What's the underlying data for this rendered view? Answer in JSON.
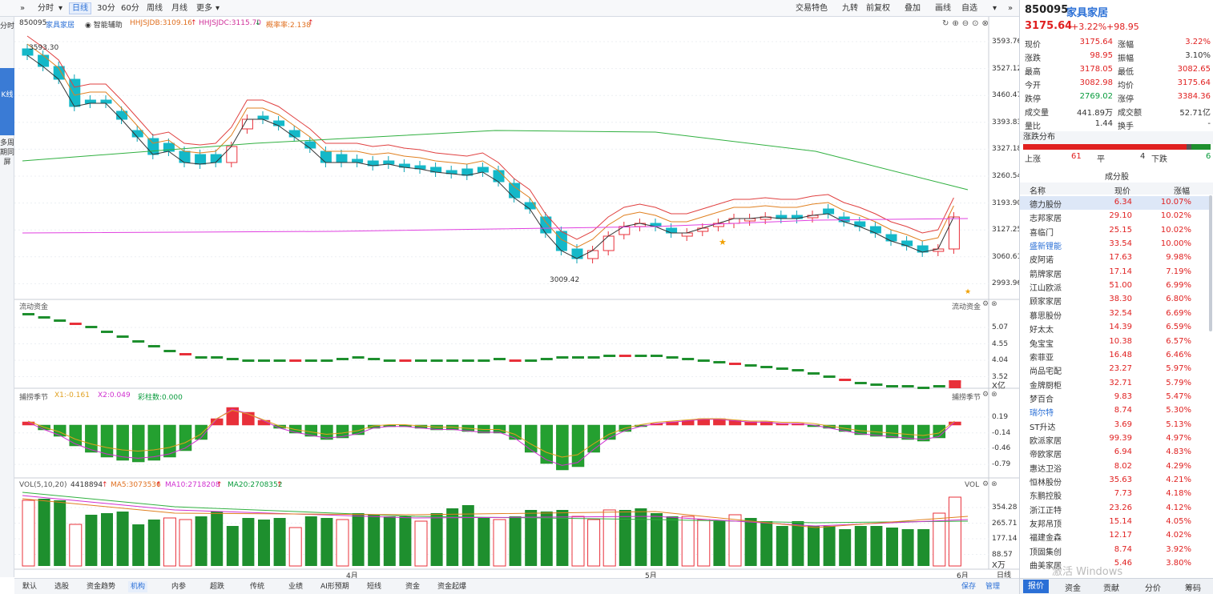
{
  "toolbar": {
    "items": [
      "分时",
      "日线",
      "30分",
      "60分",
      "周线",
      "月线",
      "更多"
    ],
    "right_items": [
      "交易特色",
      "九转",
      "前复权",
      "叠加",
      "画线",
      "自选"
    ]
  },
  "leftbar": [
    "分时",
    "K线",
    "多周期同屏"
  ],
  "kline_header": {
    "code": "850095",
    "name": "家具家居",
    "assist": "智能辅助",
    "hhjsjdb": "HHJSJDB:3109.16",
    "hhjsjdc": "HHJSJDC:3115.70",
    "zhl": "概率率:2.138"
  },
  "kline_axis": [
    "3593.76",
    "3527.12",
    "3460.47",
    "3393.83",
    "3327.18",
    "3260.54",
    "3193.90",
    "3127.25",
    "3060.61",
    "2993.96"
  ],
  "kline_marks": {
    "high": "3593.30",
    "low": "3009.42"
  },
  "flow_panel": {
    "title": "流动资金",
    "title_right": "流动资金",
    "axis": [
      "5.07",
      "4.55",
      "4.04",
      "3.52"
    ],
    "unit": "X亿"
  },
  "cycle_panel": {
    "title": "捕捞季节",
    "x1": "X1:-0.161",
    "x2": "X2:0.049",
    "count": "彩柱数:0.000",
    "title_right": "捕捞季节",
    "axis": [
      "0.19",
      "-0.14",
      "-0.46",
      "-0.79"
    ]
  },
  "vol_panel": {
    "title": "VOL(5,10,20)",
    "value": "4418894",
    "ma5": "MA5:3073536",
    "ma10": "MA10:2718208",
    "ma20": "MA20:2708352",
    "title_right": "VOL",
    "axis": [
      "354.28",
      "265.71",
      "177.14",
      "88.57"
    ],
    "unit": "X万"
  },
  "x_axis": [
    "4月",
    "5月",
    "6月"
  ],
  "bottom_tabs": [
    "默认",
    "选股",
    "资金趋势",
    "机构",
    "内参",
    "超跌",
    "传统",
    "业绩",
    "AI形预期",
    "短线",
    "资金",
    "资金起爆"
  ],
  "bottom_right": [
    "保存",
    "管理"
  ],
  "bottom_far": "日线",
  "quote": {
    "code": "850095",
    "name": "家具家居",
    "price": "3175.64",
    "change_pct": "+3.22%",
    "change": "+98.95",
    "rows": [
      {
        "l1": "现价",
        "v1": "3175.64",
        "l2": "涨幅",
        "v2": "3.22%",
        "c1": "red",
        "c2": "red"
      },
      {
        "l1": "涨跌",
        "v1": "98.95",
        "l2": "振幅",
        "v2": "3.10%",
        "c1": "red",
        "c2": "black"
      },
      {
        "l1": "最高",
        "v1": "3178.05",
        "l2": "最低",
        "v2": "3082.65",
        "c1": "red",
        "c2": "red"
      },
      {
        "l1": "今开",
        "v1": "3082.98",
        "l2": "均价",
        "v2": "3175.64",
        "c1": "red",
        "c2": "red"
      },
      {
        "l1": "跌停",
        "v1": "2769.02",
        "l2": "涨停",
        "v2": "3384.36",
        "c1": "green",
        "c2": "red"
      },
      {
        "l1": "成交量",
        "v1": "441.89万",
        "l2": "成交额",
        "v2": "52.71亿",
        "c1": "black",
        "c2": "black"
      },
      {
        "l1": "量比",
        "v1": "1.44",
        "l2": "换手",
        "v2": "-",
        "c1": "black",
        "c2": "black"
      }
    ],
    "dist_title": "涨跌分布",
    "dist": {
      "up_label": "上涨",
      "up": "61",
      "flat_label": "平",
      "flat": "4",
      "down_label": "下跌",
      "down": "6"
    },
    "components_title": "成分股",
    "col_headers": [
      "名称",
      "现价",
      "涨幅"
    ],
    "stocks": [
      {
        "name": "德力股份",
        "price": "6.34",
        "pct": "10.07%",
        "nc": "black"
      },
      {
        "name": "志邦家居",
        "price": "29.10",
        "pct": "10.02%",
        "nc": "black"
      },
      {
        "name": "喜临门",
        "price": "25.15",
        "pct": "10.02%",
        "nc": "black"
      },
      {
        "name": "盛新锂能",
        "price": "33.54",
        "pct": "10.00%",
        "nc": "blue"
      },
      {
        "name": "皮阿诺",
        "price": "17.63",
        "pct": "9.98%",
        "nc": "black"
      },
      {
        "name": "箭牌家居",
        "price": "17.14",
        "pct": "7.19%",
        "nc": "black"
      },
      {
        "name": "江山欧派",
        "price": "51.00",
        "pct": "6.99%",
        "nc": "black"
      },
      {
        "name": "顾家家居",
        "price": "38.30",
        "pct": "6.80%",
        "nc": "black"
      },
      {
        "name": "慕思股份",
        "price": "32.54",
        "pct": "6.69%",
        "nc": "black"
      },
      {
        "name": "好太太",
        "price": "14.39",
        "pct": "6.59%",
        "nc": "black"
      },
      {
        "name": "兔宝宝",
        "price": "10.38",
        "pct": "6.57%",
        "nc": "black"
      },
      {
        "name": "索菲亚",
        "price": "16.48",
        "pct": "6.46%",
        "nc": "black"
      },
      {
        "name": "尚品宅配",
        "price": "23.27",
        "pct": "5.97%",
        "nc": "black"
      },
      {
        "name": "金牌厨柜",
        "price": "32.71",
        "pct": "5.79%",
        "nc": "black"
      },
      {
        "name": "梦百合",
        "price": "9.83",
        "pct": "5.47%",
        "nc": "black"
      },
      {
        "name": "瑞尔特",
        "price": "8.74",
        "pct": "5.30%",
        "nc": "blue"
      },
      {
        "name": "ST升达",
        "price": "3.69",
        "pct": "5.13%",
        "nc": "black"
      },
      {
        "name": "欧派家居",
        "price": "99.39",
        "pct": "4.97%",
        "nc": "black"
      },
      {
        "name": "帝欧家居",
        "price": "6.94",
        "pct": "4.83%",
        "nc": "black"
      },
      {
        "name": "惠达卫浴",
        "price": "8.02",
        "pct": "4.29%",
        "nc": "black"
      },
      {
        "name": "恒林股份",
        "price": "35.63",
        "pct": "4.21%",
        "nc": "black"
      },
      {
        "name": "东鹏控股",
        "price": "7.73",
        "pct": "4.18%",
        "nc": "black"
      },
      {
        "name": "浙江正特",
        "price": "23.26",
        "pct": "4.12%",
        "nc": "black"
      },
      {
        "name": "友邦吊顶",
        "price": "15.14",
        "pct": "4.05%",
        "nc": "black"
      },
      {
        "name": "福建金森",
        "price": "12.17",
        "pct": "4.02%",
        "nc": "black"
      },
      {
        "name": "顶固集创",
        "price": "8.74",
        "pct": "3.92%",
        "nc": "black"
      },
      {
        "name": "曲美家居",
        "price": "5.46",
        "pct": "3.80%",
        "nc": "black"
      }
    ],
    "tabs": [
      "报价",
      "资金",
      "贡献",
      "分价",
      "筹码"
    ],
    "watermark": "激活 Windows"
  },
  "colors": {
    "up": "#e8303a",
    "down_fill": "#14b8c8",
    "vol_down": "#1e8f2e",
    "accent": "#2a6fd6"
  }
}
